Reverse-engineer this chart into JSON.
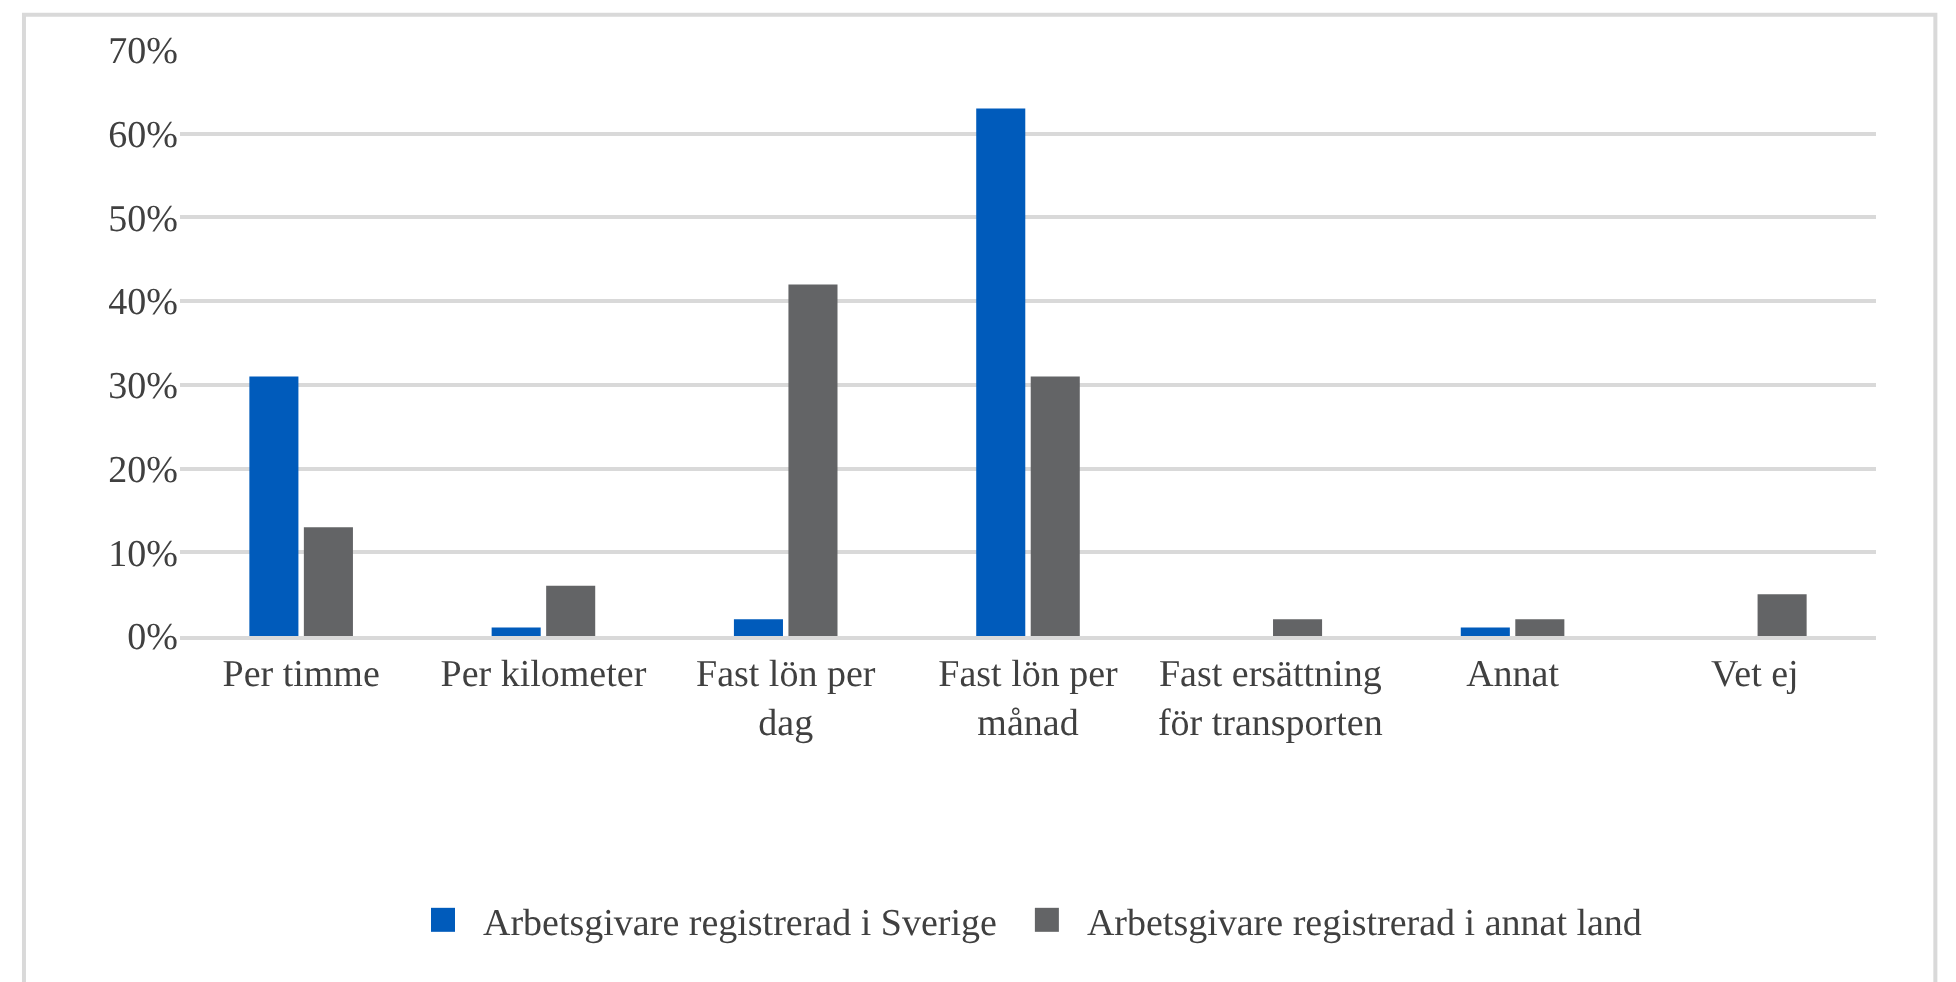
{
  "chart_data": {
    "type": "bar",
    "categories": [
      "Per timme",
      "Per kilometer",
      "Fast lön per dag",
      "Fast lön per månad",
      "Fast ersättning för transporten",
      "Annat",
      "Vet ej"
    ],
    "series": [
      {
        "name": "Arbetsgivare registrerad i Sverige",
        "color": "#005bbb",
        "values": [
          31,
          1,
          2,
          63,
          0,
          1,
          0
        ]
      },
      {
        "name": "Arbetsgivare registrerad i annat land",
        "color": "#636466",
        "values": [
          13,
          6,
          42,
          31,
          2,
          2,
          5
        ]
      }
    ],
    "ylim": [
      0,
      70
    ],
    "yticks": [
      {
        "value": 0,
        "label": "0%"
      },
      {
        "value": 10,
        "label": "10%"
      },
      {
        "value": 20,
        "label": "20%"
      },
      {
        "value": 30,
        "label": "30%"
      },
      {
        "value": 40,
        "label": "40%"
      },
      {
        "value": 50,
        "label": "50%"
      },
      {
        "value": 60,
        "label": "60%"
      },
      {
        "value": 70,
        "label": "70%"
      }
    ],
    "grid": "y",
    "legend": "bottom"
  }
}
